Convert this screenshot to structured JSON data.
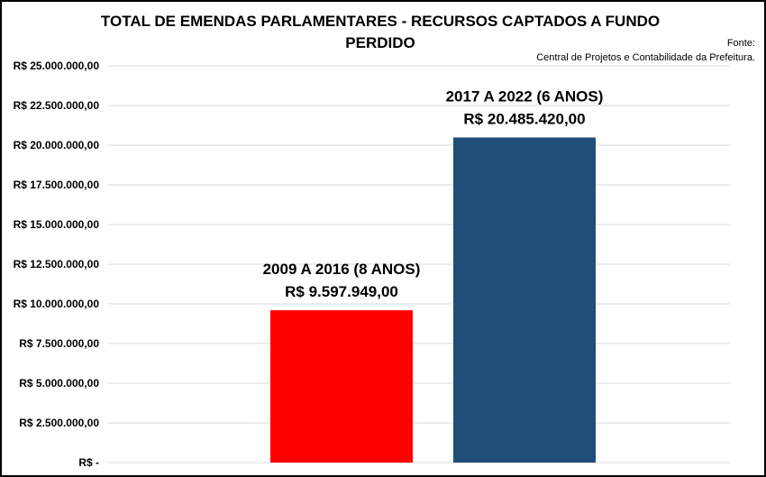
{
  "chart_data": {
    "type": "bar",
    "title_lines": [
      "TOTAL DE EMENDAS PARLAMENTARES - RECURSOS CAPTADOS A FUNDO",
      "PERDIDO"
    ],
    "source_lines": [
      "Fonte:",
      "Central de Projetos e Contabilidade da Prefeitura."
    ],
    "categories": [
      "2009 A 2016 (8 ANOS)",
      "2017 A 2022 (6 ANOS)"
    ],
    "values": [
      9597949.0,
      20485420.0
    ],
    "value_labels": [
      "R$ 9.597.949,00",
      "R$ 20.485.420,00"
    ],
    "bar_colors": [
      "#ff0000",
      "#1f4e79"
    ],
    "ylim": [
      0,
      25000000
    ],
    "yticks": [
      0,
      2500000,
      5000000,
      7500000,
      10000000,
      12500000,
      15000000,
      17500000,
      20000000,
      22500000,
      25000000
    ],
    "ytick_labels": [
      "R$ -",
      "R$ 2.500.000,00",
      "R$ 5.000.000,00",
      "R$ 7.500.000,00",
      "R$ 10.000.000,00",
      "R$ 12.500.000,00",
      "R$ 15.000.000,00",
      "R$ 17.500.000,00",
      "R$ 20.000.000,00",
      "R$ 22.500.000,00",
      "R$ 25.000.000,00"
    ],
    "xlabel": "",
    "ylabel": "",
    "grid": true,
    "legend": "none",
    "gridline_color": "#d9d9d9"
  }
}
